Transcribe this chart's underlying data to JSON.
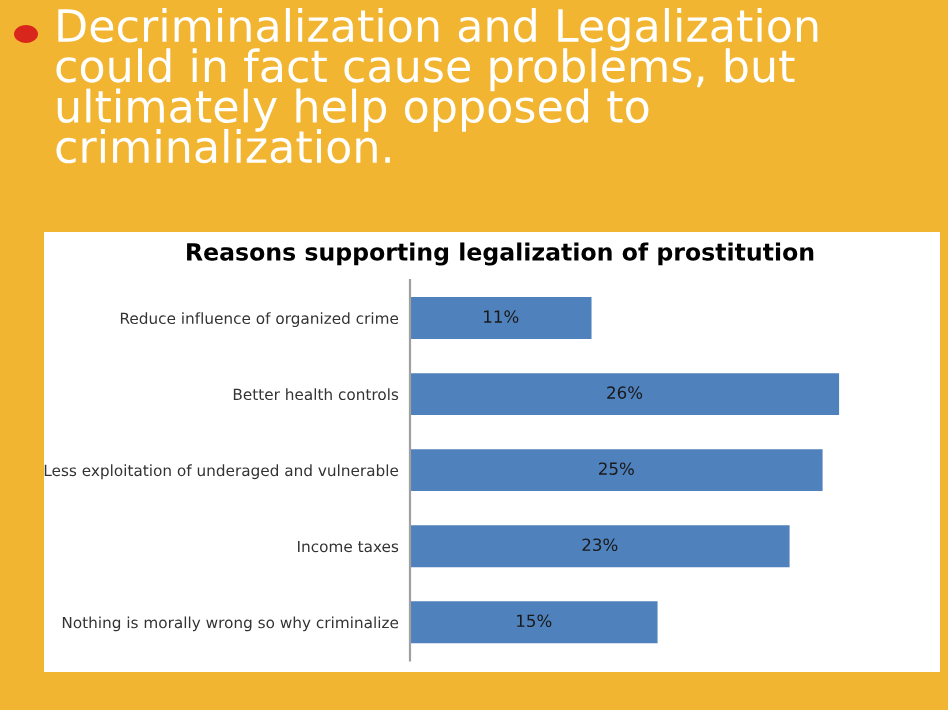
{
  "chart_data": {
    "type": "bar",
    "orientation": "horizontal",
    "title": "Reasons supporting legalization of prostitution",
    "annotations": [
      "Decriminalization and Legalization could in fact cause problems, but ultimately help opposed to criminalization."
    ],
    "categories": [
      "Reduce influence of organized crime",
      "Better health controls",
      "Less exploitation of underaged and vulnerable",
      "Income taxes",
      "Nothing is morally wrong so why criminalize"
    ],
    "values": [
      11,
      26,
      25,
      23,
      15
    ],
    "value_labels": [
      "11%",
      "26%",
      "25%",
      "23%",
      "15%"
    ],
    "color": "#4f81bd",
    "tick_labels": "y",
    "grid": false,
    "legend": false
  }
}
